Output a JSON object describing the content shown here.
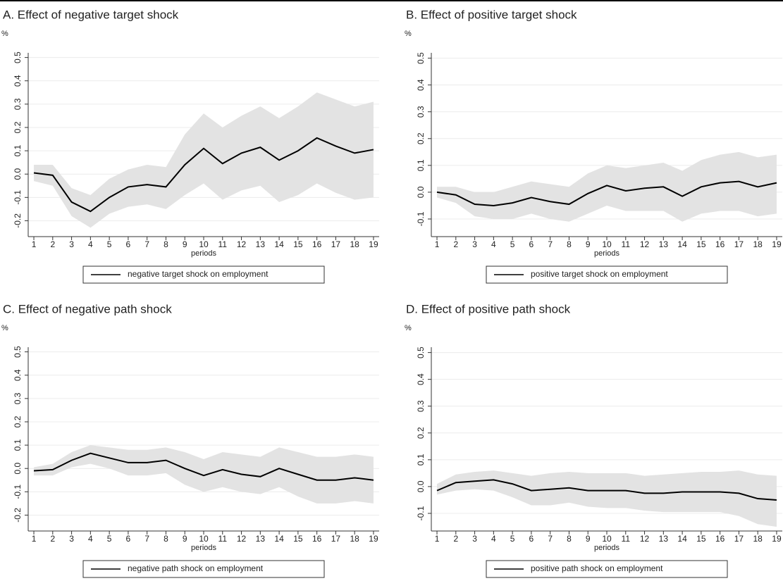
{
  "chart_data": [
    {
      "type": "line",
      "title": "A. Effect of negative target shock",
      "y_label": "%",
      "x_label": "periods",
      "x": [
        1,
        2,
        3,
        4,
        5,
        6,
        7,
        8,
        9,
        10,
        11,
        12,
        13,
        14,
        15,
        16,
        17,
        18,
        19
      ],
      "xlim": [
        0.7,
        19.3
      ],
      "xticks": [
        1,
        2,
        3,
        4,
        5,
        6,
        7,
        8,
        9,
        10,
        11,
        12,
        13,
        14,
        15,
        16,
        17,
        18,
        19
      ],
      "ylim": [
        -0.25,
        0.52
      ],
      "yticks": [
        -0.2,
        -0.1,
        {
          "value": 0,
          "label": "0.0"
        },
        0.1,
        0.2,
        0.3,
        0.4,
        0.5
      ],
      "grid": true,
      "series": [
        {
          "name": "negative target shock on employment",
          "color": "#000000",
          "values": [
            0.005,
            -0.005,
            -0.12,
            -0.16,
            -0.1,
            -0.055,
            -0.045,
            -0.055,
            0.04,
            0.11,
            0.045,
            0.09,
            0.115,
            0.06,
            0.1,
            0.155,
            0.12,
            0.09,
            0.105
          ]
        }
      ],
      "band": {
        "color": "#e3e3e3",
        "upper": [
          0.04,
          0.04,
          -0.06,
          -0.09,
          -0.02,
          0.02,
          0.04,
          0.03,
          0.17,
          0.26,
          0.2,
          0.25,
          0.29,
          0.24,
          0.29,
          0.35,
          0.32,
          0.29,
          0.31
        ],
        "lower": [
          -0.03,
          -0.05,
          -0.18,
          -0.23,
          -0.17,
          -0.14,
          -0.13,
          -0.15,
          -0.09,
          -0.04,
          -0.11,
          -0.07,
          -0.05,
          -0.12,
          -0.09,
          -0.04,
          -0.08,
          -0.11,
          -0.1
        ]
      }
    },
    {
      "type": "line",
      "title": "B. Effect of positive target shock",
      "y_label": "%",
      "x_label": "periods",
      "x": [
        1,
        2,
        3,
        4,
        5,
        6,
        7,
        8,
        9,
        10,
        11,
        12,
        13,
        14,
        15,
        16,
        17,
        18,
        19
      ],
      "xlim": [
        0.7,
        19.3
      ],
      "xticks": [
        1,
        2,
        3,
        4,
        5,
        6,
        7,
        8,
        9,
        10,
        11,
        12,
        13,
        14,
        15,
        16,
        17,
        18,
        19
      ],
      "ylim": [
        -0.15,
        0.52
      ],
      "yticks": [
        -0.1,
        {
          "value": 0,
          "label": "0.0"
        },
        0.1,
        0.2,
        0.3,
        0.4,
        0.5
      ],
      "grid": true,
      "series": [
        {
          "name": "positive target shock on employment",
          "color": "#000000",
          "values": [
            0,
            -0.01,
            -0.045,
            -0.05,
            -0.04,
            -0.02,
            -0.035,
            -0.045,
            -0.005,
            0.025,
            0.005,
            0.015,
            0.02,
            -0.015,
            0.02,
            0.035,
            0.04,
            0.02,
            0.035
          ]
        }
      ],
      "band": {
        "color": "#e3e3e3",
        "upper": [
          0.02,
          0.02,
          0,
          0,
          0.02,
          0.04,
          0.03,
          0.02,
          0.07,
          0.1,
          0.09,
          0.1,
          0.11,
          0.08,
          0.12,
          0.14,
          0.15,
          0.13,
          0.14
        ],
        "lower": [
          -0.02,
          -0.04,
          -0.09,
          -0.1,
          -0.1,
          -0.08,
          -0.1,
          -0.11,
          -0.08,
          -0.05,
          -0.07,
          -0.07,
          -0.07,
          -0.11,
          -0.08,
          -0.07,
          -0.07,
          -0.09,
          -0.08
        ]
      }
    },
    {
      "type": "line",
      "title": "C. Effect of negative path shock",
      "y_label": "%",
      "x_label": "periods",
      "x": [
        1,
        2,
        3,
        4,
        5,
        6,
        7,
        8,
        9,
        10,
        11,
        12,
        13,
        14,
        15,
        16,
        17,
        18,
        19
      ],
      "xlim": [
        0.7,
        19.3
      ],
      "xticks": [
        1,
        2,
        3,
        4,
        5,
        6,
        7,
        8,
        9,
        10,
        11,
        12,
        13,
        14,
        15,
        16,
        17,
        18,
        19
      ],
      "ylim": [
        -0.25,
        0.52
      ],
      "yticks": [
        -0.2,
        -0.1,
        {
          "value": 0,
          "label": "0.0"
        },
        0.1,
        0.2,
        0.3,
        0.4,
        0.5
      ],
      "grid": true,
      "series": [
        {
          "name": "negative path shock on employment",
          "color": "#000000",
          "values": [
            -0.01,
            -0.005,
            0.035,
            0.065,
            0.045,
            0.025,
            0.025,
            0.035,
            0,
            -0.03,
            -0.005,
            -0.025,
            -0.035,
            0,
            -0.025,
            -0.05,
            -0.05,
            -0.04,
            -0.05
          ]
        }
      ],
      "band": {
        "color": "#e3e3e3",
        "upper": [
          0.005,
          0.02,
          0.07,
          0.1,
          0.09,
          0.08,
          0.08,
          0.09,
          0.07,
          0.04,
          0.07,
          0.06,
          0.05,
          0.09,
          0.07,
          0.05,
          0.05,
          0.06,
          0.05
        ],
        "lower": [
          -0.03,
          -0.03,
          0.005,
          0.02,
          0,
          -0.03,
          -0.03,
          -0.02,
          -0.07,
          -0.1,
          -0.08,
          -0.1,
          -0.11,
          -0.08,
          -0.12,
          -0.15,
          -0.15,
          -0.14,
          -0.15
        ]
      }
    },
    {
      "type": "line",
      "title": "D. Effect of positive path shock",
      "y_label": "%",
      "x_label": "periods",
      "x": [
        1,
        2,
        3,
        4,
        5,
        6,
        7,
        8,
        9,
        10,
        11,
        12,
        13,
        14,
        15,
        16,
        17,
        18,
        19
      ],
      "xlim": [
        0.7,
        19.3
      ],
      "xticks": [
        1,
        2,
        3,
        4,
        5,
        6,
        7,
        8,
        9,
        10,
        11,
        12,
        13,
        14,
        15,
        16,
        17,
        18,
        19
      ],
      "ylim": [
        -0.15,
        0.52
      ],
      "yticks": [
        -0.1,
        {
          "value": 0,
          "label": "0.0"
        },
        0.1,
        0.2,
        0.3,
        0.4,
        0.5
      ],
      "grid": true,
      "series": [
        {
          "name": "positive path shock on employment",
          "color": "#000000",
          "values": [
            -0.015,
            0.015,
            0.02,
            0.025,
            0.01,
            -0.015,
            -0.01,
            -0.005,
            -0.015,
            -0.015,
            -0.015,
            -0.025,
            -0.025,
            -0.02,
            -0.02,
            -0.02,
            -0.025,
            -0.045,
            -0.05
          ]
        }
      ],
      "band": {
        "color": "#e3e3e3",
        "upper": [
          0.01,
          0.045,
          0.055,
          0.06,
          0.05,
          0.04,
          0.05,
          0.055,
          0.05,
          0.05,
          0.05,
          0.04,
          0.045,
          0.05,
          0.055,
          0.055,
          0.06,
          0.045,
          0.04
        ],
        "lower": [
          -0.03,
          -0.015,
          -0.01,
          -0.015,
          -0.04,
          -0.07,
          -0.07,
          -0.06,
          -0.075,
          -0.08,
          -0.08,
          -0.09,
          -0.095,
          -0.095,
          -0.095,
          -0.095,
          -0.11,
          -0.14,
          -0.15
        ]
      }
    }
  ]
}
